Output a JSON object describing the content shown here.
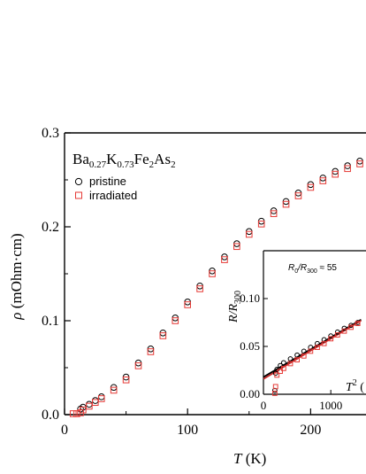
{
  "chart_data": [
    {
      "type": "scatter",
      "title_parts": {
        "base": "Ba",
        "s1": "0.27",
        "k": "K",
        "s2": "0.73",
        "fe": "Fe",
        "s3": "2",
        "as": "As",
        "s4": "2"
      },
      "xlabel_var": "T",
      "xlabel_unit": " (K)",
      "ylabel_var": "ρ",
      "ylabel_unit": " (mOhm·cm)",
      "xlim": [
        0,
        245
      ],
      "ylim": [
        0,
        0.3
      ],
      "xticks": [
        "0",
        "100",
        "200"
      ],
      "yticks": [
        "0.0",
        "0.1",
        "0.2",
        "0.3"
      ],
      "grid": false,
      "legend_position": "top-left",
      "series": [
        {
          "name": "pristine",
          "marker": "circle",
          "color": "#000000",
          "x": [
            13,
            15,
            20,
            25,
            30,
            40,
            50,
            60,
            70,
            80,
            90,
            100,
            110,
            120,
            130,
            140,
            150,
            160,
            170,
            180,
            190,
            200,
            210,
            220,
            230,
            240
          ],
          "y": [
            0.006,
            0.008,
            0.011,
            0.015,
            0.019,
            0.029,
            0.04,
            0.055,
            0.07,
            0.087,
            0.103,
            0.12,
            0.137,
            0.153,
            0.168,
            0.182,
            0.195,
            0.206,
            0.217,
            0.227,
            0.236,
            0.245,
            0.252,
            0.259,
            0.265,
            0.27
          ]
        },
        {
          "name": "irradiated",
          "marker": "square",
          "color": "#e53935",
          "x": [
            7,
            10,
            13,
            15,
            20,
            25,
            30,
            40,
            50,
            60,
            70,
            80,
            90,
            100,
            110,
            120,
            130,
            140,
            150,
            160,
            170,
            180,
            190,
            200,
            210,
            220,
            230,
            240
          ],
          "y": [
            0.001,
            0.001,
            0.002,
            0.005,
            0.009,
            0.013,
            0.017,
            0.026,
            0.037,
            0.052,
            0.067,
            0.084,
            0.1,
            0.117,
            0.134,
            0.15,
            0.165,
            0.179,
            0.192,
            0.203,
            0.214,
            0.224,
            0.233,
            0.242,
            0.249,
            0.256,
            0.262,
            0.267
          ]
        }
      ]
    },
    {
      "type": "scatter",
      "note_parts": {
        "r0": "R",
        "s0": "0",
        "slash": "/R",
        "s300": "300",
        "val": " ≈ 55"
      },
      "xlabel_var": "T",
      "xlabel_sup": "2",
      "xlabel_unit": " (",
      "ylabel_r": "R/R",
      "ylabel_sub": "300",
      "xlim": [
        0,
        1450
      ],
      "ylim": [
        0,
        0.15
      ],
      "xticks": [
        "0",
        "1000"
      ],
      "yticks": [
        "0.00",
        "0.05",
        "0.10"
      ],
      "series": [
        {
          "name": "pristine",
          "marker": "circle",
          "color": "#000000",
          "x": [
            169,
            180,
            200,
            250,
            300,
            400,
            500,
            600,
            700,
            800,
            900,
            1000,
            1100,
            1200,
            1300,
            1400
          ],
          "y": [
            0.004,
            0.022,
            0.026,
            0.03,
            0.033,
            0.037,
            0.041,
            0.045,
            0.049,
            0.053,
            0.057,
            0.061,
            0.065,
            0.069,
            0.072,
            0.075
          ]
        },
        {
          "name": "irradiated",
          "marker": "square",
          "color": "#e53935",
          "x": [
            169,
            180,
            200,
            250,
            300,
            400,
            500,
            600,
            700,
            800,
            900,
            1000,
            1100,
            1200,
            1300,
            1400
          ],
          "y": [
            0.001,
            0.008,
            0.02,
            0.024,
            0.027,
            0.032,
            0.036,
            0.04,
            0.045,
            0.049,
            0.053,
            0.058,
            0.062,
            0.066,
            0.07,
            0.074
          ]
        }
      ],
      "fit_lines": [
        {
          "color": "#000000",
          "x": [
            0,
            1450
          ],
          "y": [
            0.018,
            0.078
          ]
        },
        {
          "color": "#c62828",
          "x": [
            0,
            1450
          ],
          "y": [
            0.016,
            0.077
          ]
        }
      ]
    }
  ]
}
